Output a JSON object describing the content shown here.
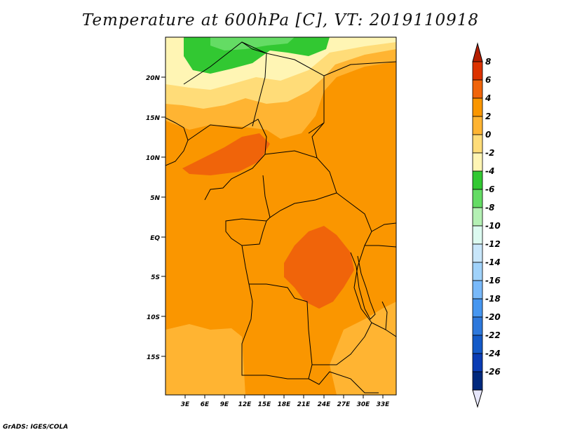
{
  "title": "Temperature at 600hPa [C], VT: 2019110918",
  "credit": "GrADS: IGES/COLA",
  "map": {
    "lat_labels": [
      "20N",
      "15N",
      "10N",
      "5N",
      "EQ",
      "5S",
      "10S",
      "15S"
    ],
    "lon_labels": [
      "3E",
      "6E",
      "9E",
      "12E",
      "15E",
      "18E",
      "21E",
      "24E",
      "27E",
      "30E",
      "33E"
    ]
  },
  "legend": {
    "labels": [
      "8",
      "6",
      "4",
      "2",
      "0",
      "-2",
      "-4",
      "-6",
      "-8",
      "-10",
      "-12",
      "-14",
      "-16",
      "-18",
      "-20",
      "-22",
      "-24",
      "-26"
    ],
    "colors": [
      "#b41e00",
      "#dc3200",
      "#f0640a",
      "#fa9600",
      "#ffb432",
      "#ffdc78",
      "#fff5b4",
      "#32c832",
      "#64dc64",
      "#b4f0b4",
      "#dcfaf0",
      "#c8e6fa",
      "#a0d2fa",
      "#78b9fa",
      "#4696f0",
      "#2d78dc",
      "#145ac8",
      "#0a3cb4",
      "#00287d",
      "#000c5a"
    ]
  }
}
